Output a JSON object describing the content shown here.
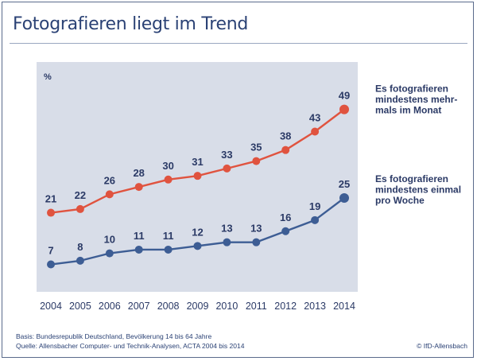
{
  "title": "Fotografieren liegt im Trend",
  "footnote": {
    "basis": "Basis: Bundesrepublik Deutschland, Bevölkerung 14 bis 64 Jahre",
    "source": "Quelle: Allensbacher Computer- und Technik-Analysen, ACTA 2004 bis 2014",
    "credit": "© IfD-Allensbach"
  },
  "chart_data": {
    "type": "line",
    "x": [
      "2004",
      "2005",
      "2006",
      "2007",
      "2008",
      "2009",
      "2010",
      "2011",
      "2012",
      "2013",
      "2014"
    ],
    "y_unit": "%",
    "ylim": [
      0,
      55
    ],
    "grid": false,
    "plot_background": "#d8dde8",
    "series": [
      {
        "name": "Es fotografieren mindestens mehrmals im Monat",
        "name_lines": [
          "Es fotografieren",
          "mindestens mehr-",
          "mals im Monat"
        ],
        "values": [
          21,
          22,
          26,
          28,
          30,
          31,
          33,
          35,
          38,
          43,
          49
        ],
        "color": "#e0533f"
      },
      {
        "name": "Es fotografieren mindestens einmal pro Woche",
        "name_lines": [
          "Es fotografieren",
          "mindestens einmal",
          "pro Woche"
        ],
        "values": [
          7,
          8,
          10,
          11,
          11,
          12,
          13,
          13,
          16,
          19,
          25
        ],
        "color": "#3d5d94"
      }
    ]
  }
}
